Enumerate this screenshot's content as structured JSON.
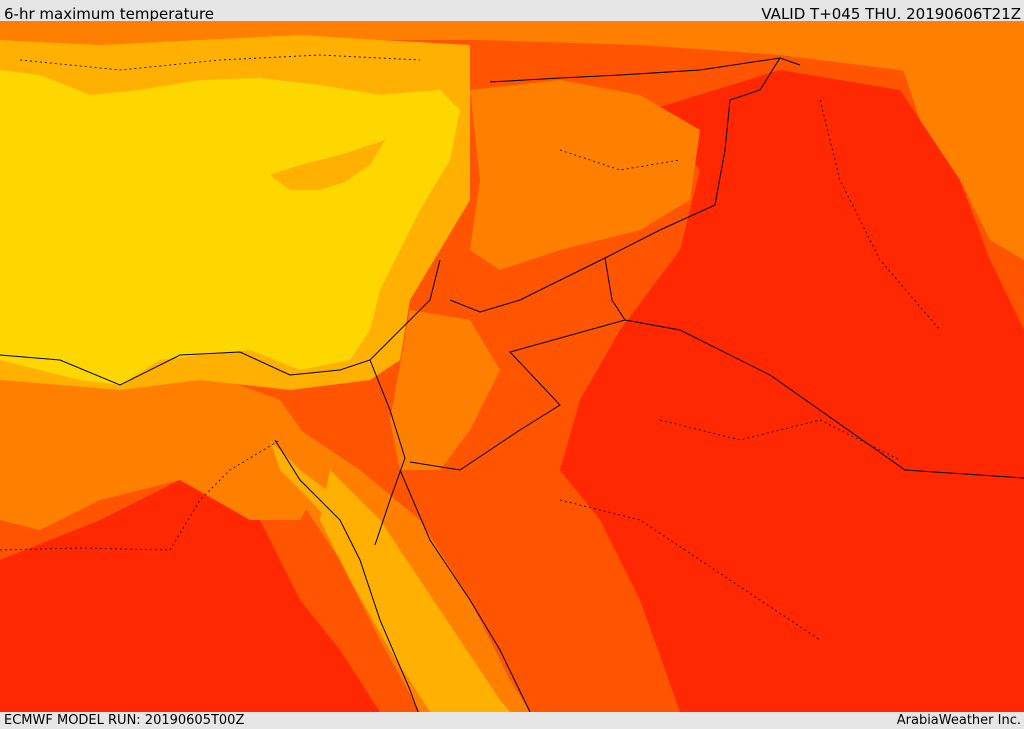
{
  "header": {
    "title": "6-hr maximum temperature",
    "valid_time": "VALID T+045 THU. 20190606T21Z"
  },
  "footer": {
    "model_run": "ECMWF MODEL RUN: 20190605T00Z",
    "credit": "ArabiaWeather Inc."
  },
  "colors": {
    "sea": "#ffd700",
    "warm": "#ffb000",
    "hot": "#ff8000",
    "very_hot": "#ff5500",
    "extreme": "#ff2800",
    "border": "#000000"
  }
}
